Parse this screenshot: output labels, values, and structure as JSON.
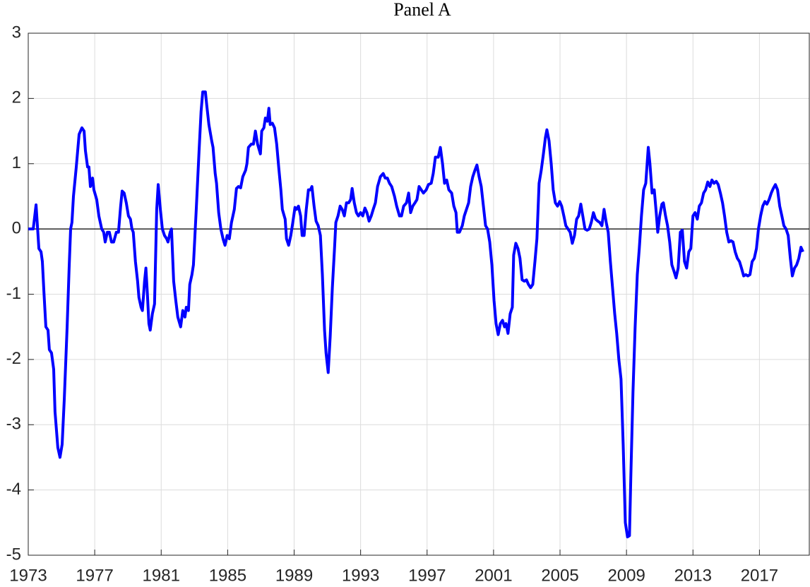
{
  "chart_data": {
    "type": "line",
    "title": "Panel A",
    "color": "#0000ff",
    "grid": true,
    "hline": 0,
    "xlim": [
      1973,
      2020
    ],
    "ylim": [
      -5,
      3
    ],
    "xticks": [
      1973,
      1977,
      1981,
      1985,
      1989,
      1993,
      1997,
      2001,
      2005,
      2009,
      2013,
      2017
    ],
    "yticks": [
      -5,
      -4,
      -3,
      -2,
      -1,
      0,
      1,
      2,
      3
    ],
    "x": [
      1973.0,
      1973.3,
      1973.47,
      1973.64,
      1973.77,
      1973.85,
      1973.94,
      1974.06,
      1974.19,
      1974.27,
      1974.4,
      1974.53,
      1974.61,
      1974.78,
      1974.91,
      1975.04,
      1975.17,
      1975.34,
      1975.46,
      1975.55,
      1975.63,
      1975.72,
      1975.89,
      1976.06,
      1976.23,
      1976.36,
      1976.44,
      1976.57,
      1976.65,
      1976.74,
      1976.87,
      1976.95,
      1977.12,
      1977.25,
      1977.42,
      1977.54,
      1977.63,
      1977.76,
      1977.88,
      1978.01,
      1978.14,
      1978.3,
      1978.43,
      1978.56,
      1978.65,
      1978.77,
      1978.9,
      1979.03,
      1979.15,
      1979.24,
      1979.32,
      1979.45,
      1979.58,
      1979.66,
      1979.79,
      1979.87,
      1980.0,
      1980.08,
      1980.17,
      1980.26,
      1980.34,
      1980.47,
      1980.6,
      1980.73,
      1980.82,
      1980.95,
      1981.07,
      1981.2,
      1981.33,
      1981.41,
      1981.54,
      1981.62,
      1981.75,
      1981.88,
      1982.0,
      1982.17,
      1982.3,
      1982.43,
      1982.51,
      1982.64,
      1982.72,
      1982.85,
      1982.94,
      1983.11,
      1983.28,
      1983.4,
      1983.5,
      1983.66,
      1983.74,
      1983.87,
      1984.04,
      1984.12,
      1984.25,
      1984.33,
      1984.46,
      1984.59,
      1984.72,
      1984.84,
      1984.97,
      1985.1,
      1985.23,
      1985.4,
      1985.53,
      1985.65,
      1985.78,
      1985.91,
      1986.08,
      1986.16,
      1986.25,
      1986.42,
      1986.55,
      1986.67,
      1986.8,
      1986.97,
      1987.05,
      1987.18,
      1987.27,
      1987.39,
      1987.48,
      1987.56,
      1987.69,
      1987.82,
      1987.95,
      1988.07,
      1988.2,
      1988.29,
      1988.46,
      1988.54,
      1988.67,
      1988.8,
      1988.92,
      1989.05,
      1989.14,
      1989.26,
      1989.39,
      1989.48,
      1989.6,
      1989.73,
      1989.86,
      1989.98,
      1990.07,
      1990.2,
      1990.32,
      1990.45,
      1990.58,
      1990.7,
      1990.83,
      1990.92,
      1991.05,
      1991.17,
      1991.3,
      1991.43,
      1991.51,
      1991.64,
      1991.77,
      1991.89,
      1992.02,
      1992.15,
      1992.28,
      1992.4,
      1992.49,
      1992.62,
      1992.75,
      1992.87,
      1993.0,
      1993.13,
      1993.26,
      1993.38,
      1993.51,
      1993.64,
      1993.76,
      1993.89,
      1994.02,
      1994.19,
      1994.36,
      1994.48,
      1994.61,
      1994.74,
      1994.87,
      1995.04,
      1995.17,
      1995.34,
      1995.46,
      1995.59,
      1995.76,
      1995.89,
      1996.01,
      1996.14,
      1996.27,
      1996.39,
      1996.52,
      1996.65,
      1996.78,
      1996.95,
      1997.08,
      1997.25,
      1997.37,
      1997.5,
      1997.67,
      1997.8,
      1997.93,
      1998.05,
      1998.18,
      1998.31,
      1998.48,
      1998.61,
      1998.74,
      1998.82,
      1998.95,
      1999.12,
      1999.24,
      1999.37,
      1999.5,
      1999.62,
      1999.75,
      1999.88,
      2000.0,
      2000.13,
      2000.26,
      2000.39,
      2000.52,
      2000.64,
      2000.77,
      2000.9,
      2001.03,
      2001.15,
      2001.28,
      2001.41,
      2001.54,
      2001.66,
      2001.75,
      2001.87,
      2002.0,
      2002.13,
      2002.21,
      2002.34,
      2002.47,
      2002.59,
      2002.72,
      2002.85,
      2002.98,
      2003.1,
      2003.23,
      2003.36,
      2003.49,
      2003.61,
      2003.74,
      2003.87,
      2004.0,
      2004.12,
      2004.21,
      2004.34,
      2004.47,
      2004.59,
      2004.72,
      2004.85,
      2004.98,
      2005.1,
      2005.23,
      2005.35,
      2005.48,
      2005.61,
      2005.74,
      2005.87,
      2006.0,
      2006.12,
      2006.25,
      2006.37,
      2006.5,
      2006.63,
      2006.76,
      2006.88,
      2007.01,
      2007.14,
      2007.27,
      2007.39,
      2007.52,
      2007.65,
      2007.78,
      2007.9,
      2008.03,
      2008.16,
      2008.29,
      2008.41,
      2008.54,
      2008.67,
      2008.8,
      2008.93,
      2009.06,
      2009.18,
      2009.26,
      2009.39,
      2009.52,
      2009.65,
      2009.77,
      2009.9,
      2010.03,
      2010.16,
      2010.31,
      2010.41,
      2010.54,
      2010.67,
      2010.79,
      2010.88,
      2011.0,
      2011.13,
      2011.22,
      2011.35,
      2011.47,
      2011.6,
      2011.73,
      2011.86,
      2011.98,
      2012.11,
      2012.24,
      2012.36,
      2012.49,
      2012.62,
      2012.75,
      2012.87,
      2013.0,
      2013.13,
      2013.26,
      2013.38,
      2013.51,
      2013.64,
      2013.76,
      2013.89,
      2014.02,
      2014.14,
      2014.27,
      2014.4,
      2014.52,
      2014.65,
      2014.78,
      2014.9,
      2015.03,
      2015.16,
      2015.29,
      2015.41,
      2015.54,
      2015.67,
      2015.8,
      2015.92,
      2016.05,
      2016.18,
      2016.3,
      2016.43,
      2016.56,
      2016.69,
      2016.82,
      2016.94,
      2017.07,
      2017.2,
      2017.33,
      2017.45,
      2017.58,
      2017.71,
      2017.83,
      2017.96,
      2018.09,
      2018.22,
      2018.35,
      2018.47,
      2018.6,
      2018.73,
      2018.86,
      2018.98,
      2019.11,
      2019.24,
      2019.37,
      2019.5,
      2019.62
    ],
    "values": [
      0,
      0,
      0.37,
      -0.3,
      -0.35,
      -0.5,
      -0.95,
      -1.5,
      -1.55,
      -1.85,
      -1.9,
      -2.15,
      -2.8,
      -3.35,
      -3.5,
      -3.3,
      -2.6,
      -1.5,
      -0.6,
      0,
      0.1,
      0.5,
      0.95,
      1.45,
      1.55,
      1.5,
      1.2,
      0.95,
      0.95,
      0.65,
      0.78,
      0.6,
      0.45,
      0.2,
      0,
      -0.05,
      -0.2,
      -0.05,
      -0.05,
      -0.2,
      -0.2,
      -0.05,
      -0.05,
      0.35,
      0.58,
      0.55,
      0.4,
      0.2,
      0.15,
      0,
      -0.05,
      -0.5,
      -0.8,
      -1.05,
      -1.2,
      -1.25,
      -0.8,
      -0.6,
      -1.0,
      -1.45,
      -1.55,
      -1.3,
      -1.15,
      0.3,
      0.68,
      0.3,
      0,
      -0.1,
      -0.15,
      -0.2,
      -0.05,
      0,
      -0.8,
      -1.1,
      -1.35,
      -1.5,
      -1.25,
      -1.35,
      -1.2,
      -1.25,
      -0.85,
      -0.7,
      -0.55,
      0.3,
      1.2,
      1.8,
      2.1,
      2.1,
      1.9,
      1.6,
      1.35,
      1.25,
      0.85,
      0.7,
      0.25,
      0,
      -0.15,
      -0.25,
      -0.1,
      -0.15,
      0.1,
      0.3,
      0.62,
      0.65,
      0.63,
      0.8,
      0.9,
      1.0,
      1.25,
      1.3,
      1.3,
      1.5,
      1.3,
      1.15,
      1.5,
      1.55,
      1.7,
      1.65,
      1.85,
      1.6,
      1.62,
      1.55,
      1.3,
      0.95,
      0.6,
      0.3,
      0.15,
      -0.15,
      -0.25,
      -0.1,
      0.1,
      0.33,
      0.3,
      0.35,
      0.2,
      -0.1,
      -0.1,
      0.3,
      0.6,
      0.6,
      0.65,
      0.35,
      0.12,
      0.05,
      -0.1,
      -0.7,
      -1.55,
      -1.9,
      -2.2,
      -1.65,
      -0.9,
      -0.3,
      0.1,
      0.2,
      0.35,
      0.3,
      0.2,
      0.4,
      0.4,
      0.45,
      0.62,
      0.4,
      0.25,
      0.2,
      0.25,
      0.2,
      0.32,
      0.25,
      0.12,
      0.2,
      0.3,
      0.4,
      0.65,
      0.8,
      0.85,
      0.78,
      0.78,
      0.7,
      0.65,
      0.5,
      0.35,
      0.2,
      0.2,
      0.35,
      0.4,
      0.55,
      0.25,
      0.35,
      0.4,
      0.45,
      0.65,
      0.6,
      0.55,
      0.6,
      0.68,
      0.7,
      0.85,
      1.1,
      1.1,
      1.25,
      1.0,
      0.7,
      0.75,
      0.6,
      0.55,
      0.35,
      0.25,
      -0.05,
      -0.05,
      0.05,
      0.2,
      0.3,
      0.4,
      0.65,
      0.8,
      0.9,
      0.98,
      0.8,
      0.65,
      0.35,
      0.05,
      0,
      -0.2,
      -0.55,
      -1.1,
      -1.45,
      -1.62,
      -1.45,
      -1.4,
      -1.5,
      -1.45,
      -1.6,
      -1.3,
      -1.2,
      -0.4,
      -0.22,
      -0.3,
      -0.45,
      -0.78,
      -0.8,
      -0.78,
      -0.85,
      -0.9,
      -0.85,
      -0.5,
      -0.15,
      0.7,
      0.9,
      1.15,
      1.4,
      1.52,
      1.35,
      1.0,
      0.6,
      0.4,
      0.35,
      0.42,
      0.35,
      0.2,
      0.05,
      0,
      -0.05,
      -0.22,
      -0.1,
      0.15,
      0.2,
      0.38,
      0.2,
      0,
      -0.02,
      0,
      0.1,
      0.25,
      0.15,
      0.12,
      0.1,
      0.05,
      0.3,
      0.1,
      -0.05,
      -0.5,
      -0.9,
      -1.3,
      -1.6,
      -2.0,
      -2.3,
      -3.3,
      -4.5,
      -4.72,
      -4.7,
      -3.8,
      -2.5,
      -1.5,
      -0.7,
      -0.3,
      0.2,
      0.6,
      0.7,
      1.25,
      1.0,
      0.55,
      0.6,
      0.25,
      -0.05,
      0.2,
      0.38,
      0.4,
      0.2,
      0.05,
      -0.2,
      -0.55,
      -0.65,
      -0.75,
      -0.6,
      -0.05,
      -0.02,
      -0.5,
      -0.6,
      -0.35,
      -0.3,
      0.2,
      0.25,
      0.15,
      0.35,
      0.4,
      0.55,
      0.6,
      0.72,
      0.65,
      0.75,
      0.7,
      0.73,
      0.68,
      0.55,
      0.4,
      0.2,
      -0.05,
      -0.2,
      -0.18,
      -0.2,
      -0.35,
      -0.45,
      -0.5,
      -0.6,
      -0.72,
      -0.7,
      -0.72,
      -0.7,
      -0.5,
      -0.45,
      -0.3,
      0,
      0.2,
      0.35,
      0.42,
      0.38,
      0.45,
      0.55,
      0.62,
      0.68,
      0.6,
      0.35,
      0.2,
      0.05,
      0,
      -0.1,
      -0.45,
      -0.72,
      -0.6,
      -0.55,
      -0.45,
      -0.28,
      -0.35
    ]
  }
}
